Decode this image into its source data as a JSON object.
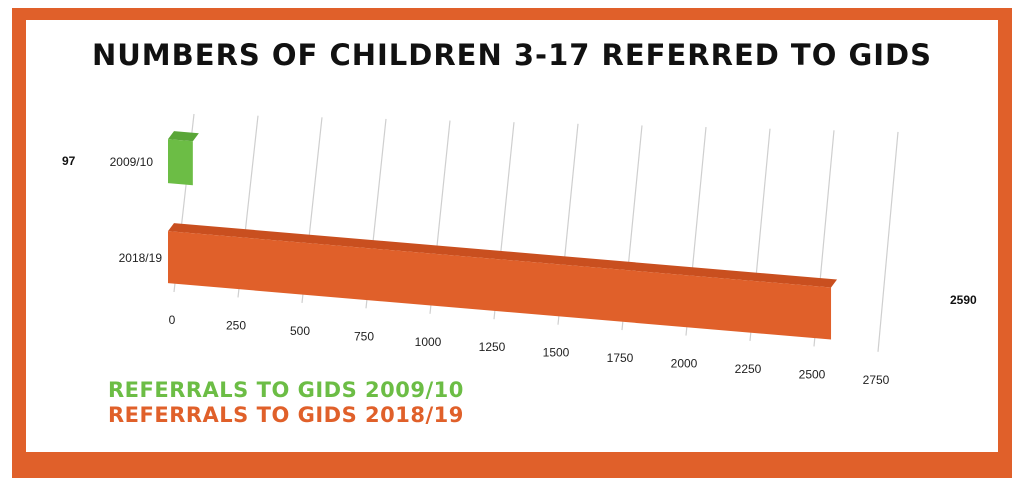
{
  "chart_data": {
    "type": "bar",
    "orientation": "horizontal",
    "title": "NUMBERS OF CHILDREN 3-17 REFERRED TO GIDS",
    "categories": [
      "2009/10",
      "2018/19"
    ],
    "values": [
      97,
      2590
    ],
    "data_labels": [
      "97",
      "2590"
    ],
    "colors": [
      "#6cbd45",
      "#e0602a"
    ],
    "xticks": [
      "0",
      "250",
      "500",
      "750",
      "1000",
      "1250",
      "1500",
      "1750",
      "2000",
      "2250",
      "2500",
      "2750"
    ],
    "xlim": [
      0,
      2750
    ],
    "grid": true,
    "legend": {
      "placement": "bottom-left",
      "entries": [
        {
          "label": "REFERRALS TO GIDS 2009/10",
          "color": "#6cbd45"
        },
        {
          "label": "REFERRALS TO GIDS 2018/19",
          "color": "#e0602a"
        }
      ]
    }
  }
}
